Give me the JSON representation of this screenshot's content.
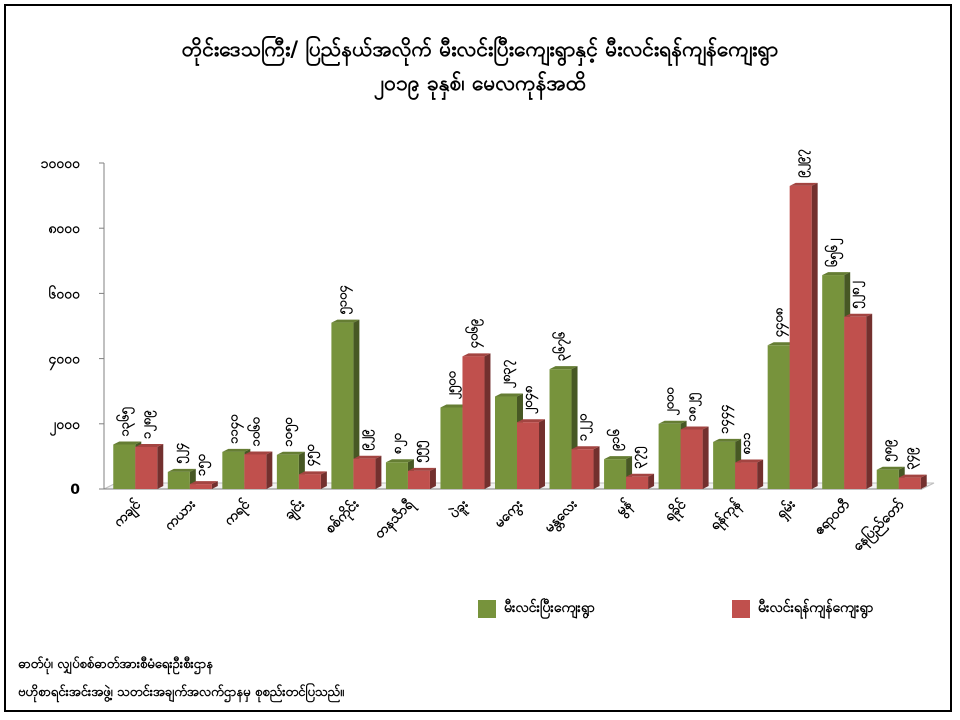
{
  "chart_data": {
    "type": "bar",
    "title": "တိုင်းဒေသကြီး/ ပြည်နယ်အလိုက် မီးလင်းပြီးကျေးရွာနှင့် မီးလင်းရန်ကျန်ကျေးရွာ",
    "subtitle": "၂၀၁၉ ခုနှစ်၊ မေလကုန်အထိ",
    "xlabel": "",
    "ylabel": "",
    "ylim": [
      0,
      10000
    ],
    "yticks": [
      0,
      2000,
      4000,
      6000,
      8000,
      10000
    ],
    "ytick_labels": [
      "0",
      "၂၀၀၀",
      "၄၀၀၀",
      "၆၀၀၀",
      "၈၀၀၀",
      "၁၀၀၀၀"
    ],
    "categories": [
      "ကချင်",
      "ကယား",
      "ကရင်",
      "ချင်း",
      "စစ်ကိုင်း",
      "တနင်္သာရီ",
      "ပဲခူး",
      "မကွေး",
      "မန္တလေး",
      "မွန်",
      "ရခိုင်",
      "ရန်ကုန်",
      "ရှမ်း",
      "ဧရာဝတီ",
      "နေပြည်တော်"
    ],
    "series": [
      {
        "name": "မီးလင်းပြီးကျေးရွာ",
        "color": "#77933c",
        "values": [
          1365,
          524,
          1140,
          1050,
          5104,
          820,
          2500,
          2837,
          3676,
          916,
          2000,
          1444,
          4408,
          6562,
          589
        ],
        "labels": [
          "၁၃၆၅",
          "၅၂၄",
          "၁၁၄၀",
          "၁၀၅၀",
          "၅၁၀၄",
          "၈၂၀",
          "၂၅၀၀",
          "၂၈၃၇",
          "၃၆၇၆",
          "၉၁၆",
          "၂၀၀၀",
          "၁၄၄၄",
          "၄၄၀၈",
          "၆၅၆၂",
          "၅၈၉"
        ]
      },
      {
        "name": "မီးလင်းရန်ကျန်ကျေးရွာ",
        "color": "#c0504d",
        "values": [
          1289,
          150,
          1060,
          450,
          929,
          555,
          4069,
          2048,
          1220,
          375,
          1825,
          811,
          9297,
          5282,
          349
        ],
        "labels": [
          "၁၂၈၉",
          "၁၅၀",
          "၁၀၆၀",
          "၄၅၀",
          "၉၂၉",
          "၅၅၅",
          "၄၀၆၉",
          "၂၀၄၈",
          "၁၂၂၀",
          "၃၇၅",
          "၁၈၂၅",
          "၈၁၁",
          "၉၂၉၇",
          "၅၂၈၂",
          "၃၄၉"
        ]
      }
    ],
    "legend_position": "bottom",
    "grid": false
  },
  "footer": {
    "source_line": "ဓာတ်ပုံ၊ လျှပ်စစ်ဓာတ်အားစီမံရေးဦးစီးဌာန",
    "note_line": "ဗဟိုစာရင်းအင်းအဖွဲ့၊ သတင်းအချက်အလက်ဌာနမှ စုစည်းတင်ပြသည်။"
  }
}
